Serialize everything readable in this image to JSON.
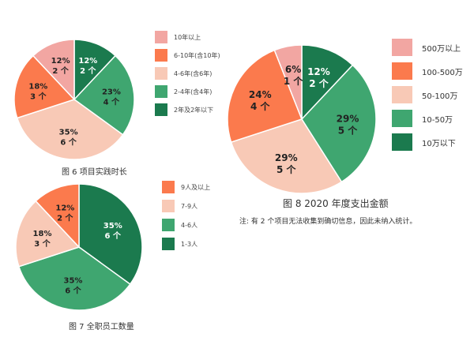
{
  "colors": {
    "c1": "#1b7a4e",
    "c2": "#3fa670",
    "c3": "#f8c9b6",
    "c4": "#fb7a4d",
    "c5": "#f2a6a2"
  },
  "chart_data": [
    {
      "id": "fig6",
      "type": "pie",
      "title": "图 6  项目实践时长",
      "legend": [
        {
          "label": "10年以上",
          "color": "#f2a6a2"
        },
        {
          "label": "6-10年(含10年)",
          "color": "#fb7a4d"
        },
        {
          "label": "4-6年(含6年)",
          "color": "#f8c9b6"
        },
        {
          "label": "2-4年(含4年)",
          "color": "#3fa670"
        },
        {
          "label": "2年及2年以下",
          "color": "#1b7a4e"
        }
      ],
      "slices": [
        {
          "category": "2年及2年以下",
          "percent": 12,
          "pct_label": "12%",
          "count_label": "2 个",
          "color": "#1b7a4e",
          "text_color": "#ffffff"
        },
        {
          "category": "2-4年(含4年)",
          "percent": 23,
          "pct_label": "23%",
          "count_label": "4 个",
          "color": "#3fa670",
          "text_color": "#222222"
        },
        {
          "category": "4-6年(含6年)",
          "percent": 35,
          "pct_label": "35%",
          "count_label": "6 个",
          "color": "#f8c9b6",
          "text_color": "#222222"
        },
        {
          "category": "6-10年(含10年)",
          "percent": 18,
          "pct_label": "18%",
          "count_label": "3 个",
          "color": "#fb7a4d",
          "text_color": "#222222"
        },
        {
          "category": "10年以上",
          "percent": 12,
          "pct_label": "12%",
          "count_label": "2 个",
          "color": "#f2a6a2",
          "text_color": "#222222"
        }
      ]
    },
    {
      "id": "fig7",
      "type": "pie",
      "title": "图 7  全职员工数量",
      "legend": [
        {
          "label": "9人及以上",
          "color": "#fb7a4d"
        },
        {
          "label": "7-9人",
          "color": "#f8c9b6"
        },
        {
          "label": "4-6人",
          "color": "#3fa670"
        },
        {
          "label": "1-3人",
          "color": "#1b7a4e"
        }
      ],
      "slices": [
        {
          "category": "1-3人",
          "percent": 35,
          "pct_label": "35%",
          "count_label": "6 个",
          "color": "#1b7a4e",
          "text_color": "#ffffff"
        },
        {
          "category": "4-6人",
          "percent": 35,
          "pct_label": "35%",
          "count_label": "6 个",
          "color": "#3fa670",
          "text_color": "#222222"
        },
        {
          "category": "7-9人",
          "percent": 18,
          "pct_label": "18%",
          "count_label": "3 个",
          "color": "#f8c9b6",
          "text_color": "#222222"
        },
        {
          "category": "9人及以上",
          "percent": 12,
          "pct_label": "12%",
          "count_label": "2 个",
          "color": "#fb7a4d",
          "text_color": "#222222"
        }
      ]
    },
    {
      "id": "fig8",
      "type": "pie",
      "title": "图 8  2020 年度支出金额",
      "note": "注: 有 2 个项目无法收集到确切信息，因此未纳入统计。",
      "legend": [
        {
          "label": "500万以上",
          "color": "#f2a6a2"
        },
        {
          "label": "100-500万",
          "color": "#fb7a4d"
        },
        {
          "label": "50-100万",
          "color": "#f8c9b6"
        },
        {
          "label": "10-50万",
          "color": "#3fa670"
        },
        {
          "label": "10万以下",
          "color": "#1b7a4e"
        }
      ],
      "slices": [
        {
          "category": "10万以下",
          "percent": 12,
          "pct_label": "12%",
          "count_label": "2 个",
          "color": "#1b7a4e",
          "text_color": "#ffffff"
        },
        {
          "category": "10-50万",
          "percent": 29,
          "pct_label": "29%",
          "count_label": "5 个",
          "color": "#3fa670",
          "text_color": "#222222"
        },
        {
          "category": "50-100万",
          "percent": 29,
          "pct_label": "29%",
          "count_label": "5 个",
          "color": "#f8c9b6",
          "text_color": "#222222"
        },
        {
          "category": "100-500万",
          "percent": 24,
          "pct_label": "24%",
          "count_label": "4 个",
          "color": "#fb7a4d",
          "text_color": "#222222"
        },
        {
          "category": "500万以上",
          "percent": 6,
          "pct_label": "6%",
          "count_label": "1 个",
          "color": "#f2a6a2",
          "text_color": "#222222"
        }
      ]
    }
  ]
}
